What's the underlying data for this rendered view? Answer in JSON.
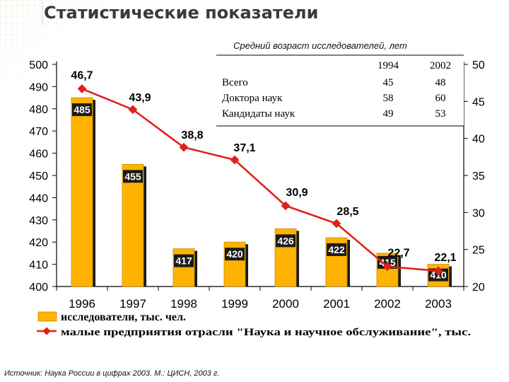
{
  "title": "Статистические показатели",
  "source": "Источник: Наука России в цифрах 2003. М.: ЦИСН, 2003 г.",
  "colors": {
    "bar_fill": "#FFB300",
    "bar_dark": "#1a1a1a",
    "line": "#E0201B",
    "axis": "#000000",
    "title": "#3a3a3a"
  },
  "chart_data": {
    "type": "bar+line",
    "categories": [
      "1996",
      "1997",
      "1998",
      "1999",
      "2000",
      "2001",
      "2002",
      "2003"
    ],
    "series": [
      {
        "name": "исследователи, тыс. чел.",
        "type": "bar",
        "axis": "left",
        "values": [
          485,
          455,
          417,
          420,
          426,
          422,
          415,
          410
        ],
        "labels": [
          "485",
          "455",
          "417",
          "420",
          "426",
          "422",
          "415",
          "410"
        ]
      },
      {
        "name": "малые предприятия отрасли \"Наука и научное обслуживание\", тыс.",
        "type": "line",
        "axis": "right",
        "values": [
          46.7,
          43.9,
          38.8,
          37.1,
          30.9,
          28.5,
          22.7,
          22.1
        ],
        "labels": [
          "46,7",
          "43,9",
          "38,8",
          "37,1",
          "30,9",
          "28,5",
          "22,7",
          "22,1"
        ]
      }
    ],
    "y_left": {
      "ylim": [
        400,
        500
      ],
      "ticks": [
        "400",
        "410",
        "420",
        "430",
        "440",
        "450",
        "460",
        "470",
        "480",
        "490",
        "500"
      ]
    },
    "y_right": {
      "ylim": [
        20,
        50
      ],
      "ticks": [
        "20",
        "25",
        "30",
        "35",
        "40",
        "45",
        "50"
      ]
    },
    "legend_placement": "bottom",
    "inset_table": {
      "title": "Средний возраст исследователей, лет",
      "columns": [
        "",
        "1994",
        "2002"
      ],
      "rows": [
        [
          "Всего",
          "45",
          "48"
        ],
        [
          "Доктора наук",
          "58",
          "60"
        ],
        [
          "Кандидаты наук",
          "49",
          "53"
        ]
      ]
    }
  }
}
